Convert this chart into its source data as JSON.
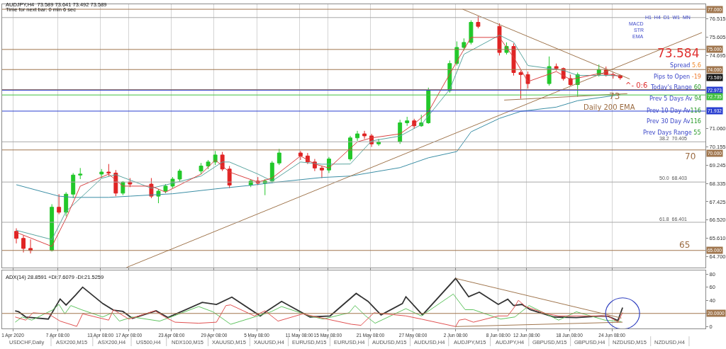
{
  "chart_data": [
    {
      "type": "candlestick",
      "title": "AUDJPY,H4  73.589 73.641 73.492 73.589",
      "subtitle": "Time for next bar: 0 min 6 sec",
      "x": [
        "2020-04-01T12:00",
        "2020-04-02T12:00",
        "2020-04-03T12:00",
        "2020-04-06T12:00",
        "2020-04-07T12:00",
        "2020-04-08T12:00",
        "2020-04-09T12:00",
        "2020-04-10T12:00",
        "2020-04-13T12:00",
        "2020-04-14T12:00",
        "2020-04-15T12:00",
        "2020-04-16T12:00",
        "2020-04-17T12:00",
        "2020-04-20T12:00",
        "2020-04-21T12:00",
        "2020-04-22T12:00",
        "2020-04-23T12:00",
        "2020-04-24T12:00",
        "2020-04-27T12:00",
        "2020-04-28T12:00",
        "2020-04-29T12:00",
        "2020-04-30T12:00",
        "2020-05-01T12:00",
        "2020-05-04T12:00",
        "2020-05-05T12:00",
        "2020-05-06T12:00",
        "2020-05-07T12:00",
        "2020-05-08T12:00",
        "2020-05-11T12:00",
        "2020-05-12T12:00",
        "2020-05-13T12:00",
        "2020-05-14T12:00",
        "2020-05-15T12:00",
        "2020-05-18T12:00",
        "2020-05-19T12:00",
        "2020-05-20T12:00",
        "2020-05-21T12:00",
        "2020-05-22T12:00",
        "2020-05-25T12:00",
        "2020-05-26T12:00",
        "2020-05-27T12:00",
        "2020-05-28T12:00",
        "2020-05-29T12:00",
        "2020-06-01T12:00",
        "2020-06-02T12:00",
        "2020-06-03T12:00",
        "2020-06-04T12:00",
        "2020-06-05T12:00",
        "2020-06-08T12:00",
        "2020-06-09T12:00",
        "2020-06-10T12:00",
        "2020-06-11T12:00",
        "2020-06-12T12:00",
        "2020-06-15T12:00",
        "2020-06-16T12:00",
        "2020-06-17T12:00",
        "2020-06-18T12:00",
        "2020-06-19T12:00",
        "2020-06-22T12:00",
        "2020-06-23T12:00",
        "2020-06-24T12:00",
        "2020-06-25T12:00"
      ],
      "ohlc": [
        [
          65.95,
          66.1,
          65.35,
          65.6
        ],
        [
          65.6,
          65.75,
          64.9,
          65.1
        ],
        [
          65.1,
          65.55,
          64.85,
          65.0
        ],
        [
          65.0,
          67.3,
          64.95,
          67.15
        ],
        [
          67.15,
          67.8,
          66.8,
          66.9
        ],
        [
          66.9,
          67.9,
          66.7,
          67.8
        ],
        [
          67.8,
          68.85,
          67.6,
          68.75
        ],
        [
          68.75,
          69.1,
          68.55,
          68.8
        ],
        [
          68.8,
          69.05,
          68.6,
          68.9
        ],
        [
          68.9,
          69.3,
          68.7,
          68.85
        ],
        [
          68.85,
          69.0,
          67.7,
          67.85
        ],
        [
          67.85,
          68.45,
          67.75,
          68.4
        ],
        [
          68.4,
          68.6,
          68.15,
          68.3
        ],
        [
          68.3,
          68.6,
          67.6,
          67.7
        ],
        [
          67.7,
          68.05,
          67.35,
          67.95
        ],
        [
          67.95,
          68.3,
          67.85,
          68.2
        ],
        [
          68.2,
          68.65,
          68.1,
          68.55
        ],
        [
          68.55,
          69.05,
          68.45,
          68.95
        ],
        [
          68.95,
          69.35,
          68.8,
          69.2
        ],
        [
          69.2,
          69.5,
          69.05,
          69.4
        ],
        [
          69.4,
          69.95,
          69.25,
          69.75
        ],
        [
          69.75,
          69.9,
          68.95,
          69.05
        ],
        [
          69.05,
          69.2,
          68.1,
          68.25
        ],
        [
          68.25,
          68.55,
          68.15,
          68.45
        ],
        [
          68.45,
          68.65,
          68.25,
          68.35
        ],
        [
          68.35,
          68.55,
          67.75,
          68.45
        ],
        [
          68.45,
          69.45,
          68.35,
          69.35
        ],
        [
          69.35,
          70.05,
          69.25,
          69.85
        ],
        [
          69.85,
          69.95,
          69.5,
          69.7
        ],
        [
          69.7,
          69.85,
          69.3,
          69.4
        ],
        [
          69.4,
          69.55,
          68.95,
          69.1
        ],
        [
          69.1,
          69.2,
          68.6,
          69.0
        ],
        [
          69.0,
          69.65,
          68.85,
          69.55
        ],
        [
          69.55,
          70.7,
          69.45,
          70.6
        ],
        [
          70.6,
          70.95,
          70.45,
          70.8
        ],
        [
          70.8,
          70.95,
          70.55,
          70.7
        ],
        [
          70.7,
          70.8,
          70.15,
          70.3
        ],
        [
          70.3,
          70.55,
          70.2,
          70.4
        ],
        [
          70.4,
          71.5,
          70.3,
          71.35
        ],
        [
          71.35,
          71.65,
          71.2,
          71.45
        ],
        [
          71.45,
          71.55,
          71.05,
          71.2
        ],
        [
          71.2,
          71.75,
          71.15,
          71.35
        ],
        [
          71.35,
          73.1,
          71.3,
          72.95
        ],
        [
          72.95,
          74.45,
          72.85,
          74.3
        ],
        [
          74.3,
          75.4,
          74.2,
          75.1
        ],
        [
          75.1,
          75.55,
          74.95,
          75.35
        ],
        [
          75.35,
          76.45,
          75.25,
          76.35
        ],
        [
          76.35,
          76.65,
          76.05,
          76.15
        ],
        [
          76.15,
          76.3,
          74.7,
          74.85
        ],
        [
          74.85,
          75.35,
          74.75,
          75.15
        ],
        [
          75.15,
          75.3,
          73.7,
          73.85
        ],
        [
          73.85,
          73.95,
          72.55,
          73.75
        ],
        [
          73.75,
          73.9,
          73.05,
          73.3
        ],
        [
          73.3,
          74.65,
          73.2,
          74.15
        ],
        [
          74.15,
          74.3,
          73.95,
          74.05
        ],
        [
          74.05,
          74.1,
          73.45,
          73.55
        ],
        [
          73.55,
          73.75,
          73.2,
          73.25
        ],
        [
          73.25,
          73.85,
          72.65,
          73.75
        ],
        [
          73.75,
          74.25,
          73.65,
          74.0
        ],
        [
          74.0,
          74.15,
          73.65,
          73.75
        ],
        [
          73.75,
          73.85,
          73.55,
          73.7
        ],
        [
          73.7,
          73.75,
          73.492,
          73.589
        ]
      ],
      "colors": [
        "#e02424",
        "#e02424",
        "#e02424",
        "#22c82a",
        "#e02424",
        "#22c82a",
        "#22c82a",
        "#22c82a",
        "#22c82a",
        "#e02424",
        "#e02424",
        "#22c82a",
        "#e02424",
        "#e02424",
        "#22c82a",
        "#22c82a",
        "#22c82a",
        "#22c82a",
        "#22c82a",
        "#22c82a",
        "#22c82a",
        "#e02424",
        "#e02424",
        "#22c82a",
        "#e02424",
        "#22c82a",
        "#22c82a",
        "#22c82a",
        "#e02424",
        "#e02424",
        "#e02424",
        "#e02424",
        "#22c82a",
        "#22c82a",
        "#22c82a",
        "#e02424",
        "#e02424",
        "#22c82a",
        "#22c82a",
        "#22c82a",
        "#e02424",
        "#22c82a",
        "#22c82a",
        "#22c82a",
        "#22c82a",
        "#22c82a",
        "#22c82a",
        "#e02424",
        "#e02424",
        "#22c82a",
        "#e02424",
        "#e02424",
        "#e02424",
        "#22c82a",
        "#e02424",
        "#e02424",
        "#e02424",
        "#22c82a",
        "#22c82a",
        "#e02424",
        "#e02424",
        "#e02424"
      ],
      "series": [
        {
          "type": "line",
          "color": "#3b8ea5",
          "x": [
            "2020-04-01T12:00",
            "2020-04-07T12:00",
            "2020-04-09T12:00",
            "2020-04-14T12:00",
            "2020-04-17T12:00",
            "2020-04-23T12:00",
            "2020-04-29T12:00",
            "2020-05-04T12:00",
            "2020-05-08T12:00",
            "2020-05-14T12:00",
            "2020-05-18T12:00",
            "2020-05-25T12:00",
            "2020-05-29T12:00",
            "2020-06-02T12:00",
            "2020-06-04T12:00",
            "2020-06-08T12:00",
            "2020-06-11T12:00",
            "2020-06-16T12:00",
            "2020-06-19T12:00",
            "2020-06-25T12:00"
          ],
          "values": [
            68.27,
            67.7,
            67.64,
            67.64,
            67.7,
            67.82,
            68.06,
            68.24,
            68.41,
            68.63,
            68.7,
            69.12,
            69.61,
            69.92,
            70.9,
            71.57,
            71.92,
            72.13,
            72.45,
            72.75
          ]
        },
        {
          "type": "line",
          "color": "#5aa5a0",
          "x": [
            "2020-04-01T12:00",
            "2020-04-06T12:00",
            "2020-04-08T12:00",
            "2020-04-13T12:00",
            "2020-04-15T12:00",
            "2020-04-20T12:00",
            "2020-04-23T12:00",
            "2020-04-27T12:00",
            "2020-04-30T12:00",
            "2020-05-01T12:00",
            "2020-05-05T12:00",
            "2020-05-07T12:00",
            "2020-05-11T12:00",
            "2020-05-14T12:00",
            "2020-05-18T12:00",
            "2020-05-21T12:00",
            "2020-05-25T12:00",
            "2020-05-28T12:00",
            "2020-06-01T12:00",
            "2020-06-03T12:00",
            "2020-06-08T12:00",
            "2020-06-10T12:00",
            "2020-06-12T12:00",
            "2020-06-17T12:00",
            "2020-06-19T12:00",
            "2020-06-24T12:00",
            "2020-06-25T12:00"
          ],
          "values": [
            66.0,
            65.54,
            66.94,
            68.59,
            68.77,
            68.1,
            68.34,
            68.7,
            69.4,
            69.4,
            68.8,
            68.45,
            69.4,
            69.29,
            69.3,
            70.45,
            70.69,
            71.26,
            73.01,
            74.76,
            75.71,
            75.36,
            74.2,
            73.96,
            73.71,
            73.71,
            73.67
          ]
        },
        {
          "type": "line",
          "color": "#d94040",
          "x": [
            "2020-04-01T12:00",
            "2020-04-06T12:00",
            "2020-04-08T12:00",
            "2020-04-10T12:00",
            "2020-04-14T12:00",
            "2020-04-16T12:00",
            "2020-04-20T12:00",
            "2020-04-22T12:00",
            "2020-04-27T12:00",
            "2020-04-29T12:00",
            "2020-05-01T12:00",
            "2020-05-05T12:00",
            "2020-05-07T12:00",
            "2020-05-11T12:00",
            "2020-05-13T12:00",
            "2020-05-15T12:00",
            "2020-05-19T12:00",
            "2020-05-21T12:00",
            "2020-05-25T12:00",
            "2020-05-27T12:00",
            "2020-05-29T12:00",
            "2020-06-02T12:00",
            "2020-06-04T12:00",
            "2020-06-08T12:00",
            "2020-06-10T12:00",
            "2020-06-12T12:00",
            "2020-06-16T12:00",
            "2020-06-18T12:00",
            "2020-06-22T12:00",
            "2020-06-24T12:00",
            "2020-06-25T12:00"
          ],
          "values": [
            65.9,
            65.2,
            66.6,
            68.2,
            68.8,
            68.2,
            68.2,
            67.9,
            68.8,
            69.5,
            68.9,
            68.4,
            68.6,
            69.7,
            69.3,
            69.1,
            70.4,
            70.6,
            70.8,
            71.3,
            71.9,
            74.4,
            75.6,
            75.6,
            74.6,
            73.4,
            73.9,
            73.5,
            73.8,
            73.75,
            73.65
          ]
        },
        {
          "type": "line",
          "color": "#a0764e",
          "x": [
            "2020-04-17T00:00",
            "2020-07-07T00:00"
          ],
          "values": [
            64.15,
            75.84
          ]
        },
        {
          "type": "line",
          "color": "#a0764e",
          "x": [
            "2020-06-03T08:00",
            "2020-06-26T20:00"
          ],
          "values": [
            77.0,
            73.53
          ]
        },
        {
          "type": "line",
          "color": "#a0764e",
          "x": [
            "2020-06-09T04:00",
            "2020-06-26T12:00"
          ],
          "values": [
            72.48,
            72.8
          ]
        }
      ],
      "xlim": [
        "2020-03-30T12:00",
        "2020-07-07T12:00"
      ],
      "ylim": [
        64.13,
        77.25
      ],
      "yticks": [
        76.515,
        75.605,
        74.695,
        {
          "value": 71.06,
          "label": "71.060"
        },
        70.155,
        69.245,
        68.335,
        67.425,
        {
          "value": 66.52,
          "label": "66.520"
        },
        {
          "value": 65.61,
          "label": "65.610"
        },
        {
          "value": 64.7,
          "label": "64.700"
        }
      ],
      "tick_labels": "y",
      "grid": "x",
      "ref_lines": [
        {
          "axis": "y",
          "value": 77.0,
          "label": "77.000",
          "color": "#a0764e"
        },
        {
          "axis": "y",
          "value": 76.587,
          "color": "#a8a8a8"
        },
        {
          "axis": "y",
          "value": 75.0,
          "label": "75.000",
          "color": "#a0764e"
        },
        {
          "axis": "y",
          "value": 74.0,
          "label": "74.000",
          "color": "#a0764e"
        },
        {
          "axis": "y",
          "value": 73.0,
          "color": "#a0764e"
        },
        {
          "axis": "y",
          "value": 72.973,
          "label": "72.973",
          "color": "#2a3fd0"
        },
        {
          "axis": "y",
          "value": 72.735,
          "label": "72.735",
          "color": "#40c040"
        },
        {
          "axis": "y",
          "value": 71.932,
          "label": "71.932",
          "color": "#2a3fd0"
        },
        {
          "axis": "y",
          "value": 70.405,
          "color": "#a8a8a8"
        },
        {
          "axis": "y",
          "value": 70.0,
          "label": "70.000",
          "color": "#a0764e"
        },
        {
          "axis": "y",
          "value": 68.403,
          "color": "#a8a8a8"
        },
        {
          "axis": "y",
          "value": 66.401,
          "color": "#a8a8a8"
        },
        {
          "axis": "y",
          "value": 65.0,
          "label": "65.000",
          "color": "#a0764e"
        }
      ],
      "annotations": [
        "73.584",
        "Spread 5.6",
        "Pips to Open -19",
        "Today's Range 60",
        "Prev 5 Days Av 94",
        "Prev 10 Day Av116",
        "Prev 30 Day Av116",
        "Prev Days Range 55",
        "Daily 200 EMA",
        "^- 0:6",
        {
          "text": "73",
          "y": 73.0
        },
        "70",
        "65",
        "38.2  70.405",
        "50.0  68.403",
        "61.8  66.401",
        {
          "text": "73.589",
          "y": 73.589
        },
        "H1  H4  D1  W1  MN",
        "MACD",
        "STR",
        "EMA"
      ]
    },
    {
      "type": "line",
      "title": "ADX(14) 28.8591 +DI:7.6079 -DI:21.5259",
      "series": [
        {
          "color": "#333333",
          "x": [
            "2020-04-01T08:00",
            "2020-04-01T20:00",
            "2020-04-02T20:00",
            "2020-04-06T00:00",
            "2020-04-07T16:00",
            "2020-04-08T12:00",
            "2020-04-09T20:00",
            "2020-04-10T20:00",
            "2020-04-13T16:00",
            "2020-04-15T04:00",
            "2020-04-16T12:00",
            "2020-04-17T20:00",
            "2020-04-21T04:00",
            "2020-04-22T20:00",
            "2020-04-24T00:00",
            "2020-04-27T16:00",
            "2020-04-29T16:00",
            "2020-05-01T20:00",
            "2020-05-05T20:00",
            "2020-05-06T20:00",
            "2020-05-08T20:00",
            "2020-05-12T20:00",
            "2020-05-15T16:00",
            "2020-05-19T08:00",
            "2020-05-21T00:00",
            "2020-05-22T20:00",
            "2020-05-25T20:00",
            "2020-05-26T08:00",
            "2020-05-28T16:00",
            "2020-06-02T08:00",
            "2020-06-04T04:00",
            "2020-06-05T16:00",
            "2020-06-08T08:00",
            "2020-06-09T16:00",
            "2020-06-10T12:00",
            "2020-06-11T16:00",
            "2020-06-12T20:00",
            "2020-06-16T04:00",
            "2020-06-19T08:00",
            "2020-06-22T20:00",
            "2020-06-23T20:00",
            "2020-06-25T04:00",
            "2020-06-25T20:00"
          ],
          "values": [
            24,
            22.5,
            14.6,
            11.4,
            42,
            32.7,
            48,
            60,
            35,
            25,
            23,
            12.4,
            24,
            13.7,
            19.4,
            36.8,
            33.7,
            44.8,
            16.2,
            24,
            38.4,
            14.6,
            16.2,
            50.5,
            38.4,
            17.8,
            35,
            45.4,
            17.8,
            73.3,
            45.4,
            52.4,
            33.7,
            41.6,
            32,
            33.7,
            25.7,
            14.6,
            13.7,
            16.2,
            15.6,
            9.2,
            28.9
          ]
        },
        {
          "color": "#5fc35f",
          "x": [
            "2020-04-01T08:00",
            "2020-04-02T08:00",
            "2020-04-03T16:00",
            "2020-04-06T16:00",
            "2020-04-07T12:00",
            "2020-04-08T08:00",
            "2020-04-09T04:00",
            "2020-04-10T16:00",
            "2020-04-13T16:00",
            "2020-04-15T00:00",
            "2020-04-16T00:00",
            "2020-04-17T20:00",
            "2020-04-21T16:00",
            "2020-04-23T16:00",
            "2020-04-27T04:00",
            "2020-04-29T04:00",
            "2020-05-01T16:00",
            "2020-05-05T00:00",
            "2020-05-07T08:00",
            "2020-05-08T20:00",
            "2020-05-12T20:00",
            "2020-05-14T16:00",
            "2020-05-18T08:00",
            "2020-05-19T04:00",
            "2020-05-20T16:00",
            "2020-05-22T00:00",
            "2020-05-26T08:00",
            "2020-05-28T12:00",
            "2020-06-02T00:00",
            "2020-06-03T16:00",
            "2020-06-04T20:00",
            "2020-06-08T16:00",
            "2020-06-10T16:00",
            "2020-06-12T16:00",
            "2020-06-16T20:00",
            "2020-06-19T08:00",
            "2020-06-23T08:00",
            "2020-06-25T16:00"
          ],
          "values": [
            6.7,
            14.6,
            9.8,
            25.7,
            33.7,
            19.4,
            32,
            25.7,
            14.6,
            21,
            8.3,
            14.6,
            8.3,
            16.2,
            30.5,
            22.5,
            3.5,
            14.6,
            22.5,
            30.5,
            16.2,
            11.4,
            21,
            32,
            16.2,
            5.1,
            27.3,
            16.2,
            49.5,
            25.7,
            25.7,
            11.4,
            14.6,
            32,
            9.8,
            22.5,
            9.8,
            7.6
          ]
        },
        {
          "color": "#e05050",
          "x": [
            "2020-04-01T08:00",
            "2020-04-02T20:00",
            "2020-04-03T20:00",
            "2020-04-06T00:00",
            "2020-04-07T16:00",
            "2020-04-10T00:00",
            "2020-04-10T20:00",
            "2020-04-14T12:00",
            "2020-04-15T04:00",
            "2020-04-17T08:00",
            "2020-04-21T00:00",
            "2020-04-22T16:00",
            "2020-04-23T20:00",
            "2020-04-27T04:00",
            "2020-04-29T16:00",
            "2020-05-01T00:00",
            "2020-05-01T16:00",
            "2020-05-05T00:00",
            "2020-05-06T12:00",
            "2020-05-08T08:00",
            "2020-05-11T20:00",
            "2020-05-13T20:00",
            "2020-05-18T16:00",
            "2020-05-20T00:00",
            "2020-05-21T20:00",
            "2020-05-26T08:00",
            "2020-05-28T12:00",
            "2020-06-02T08:00",
            "2020-06-02T20:00",
            "2020-06-03T16:00",
            "2020-06-04T20:00",
            "2020-06-08T08:00",
            "2020-06-09T16:00",
            "2020-06-10T16:00",
            "2020-06-11T04:00",
            "2020-06-12T04:00",
            "2020-06-15T04:00",
            "2020-06-16T20:00",
            "2020-06-19T08:00",
            "2020-06-23T20:00",
            "2020-06-25T04:00",
            "2020-06-25T20:00"
          ],
          "values": [
            14.6,
            9.8,
            21,
            19.4,
            8.3,
            0.3,
            19.4,
            9.8,
            25.7,
            11.4,
            24,
            13,
            6.7,
            5.1,
            6.7,
            32,
            33,
            16.2,
            24,
            8.3,
            19.4,
            14.6,
            3.5,
            1.9,
            21,
            16.2,
            11.4,
            0,
            9.8,
            11.4,
            6.7,
            16.2,
            16.2,
            30.5,
            40,
            30.5,
            19.4,
            16.2,
            16.2,
            16.2,
            6.7,
            21.5
          ]
        },
        {
          "color": "#a0764e",
          "x": [
            "2020-06-02T08:00",
            "2020-06-25T16:00"
          ],
          "values": [
            73.3,
            13
          ]
        },
        {
          "color": "#a0764e",
          "x": [
            "2020-06-02T08:00",
            "2020-06-25T20:00"
          ],
          "values": [
            0,
            6.7
          ]
        }
      ],
      "xlim": [
        "2020-03-30T12:00",
        "2020-07-07T12:00"
      ],
      "xticks": [
        {
          "value": "2020-04-01T00:00",
          "label": "1 Apr 2020"
        },
        {
          "value": "2020-04-07T08:00",
          "label": "7 Apr 08:00"
        },
        {
          "value": "2020-04-13T08:00",
          "label": "13 Apr 08:00"
        },
        {
          "value": "2020-04-17T08:00",
          "label": "17 Apr 08:00"
        },
        {
          "value": "2020-04-23T08:00",
          "label": "23 Apr 08:00"
        },
        {
          "value": "2020-04-29T08:00",
          "label": "29 Apr 08:00"
        },
        {
          "value": "2020-05-05T08:00",
          "label": "5 May 08:00"
        },
        {
          "value": "2020-05-11T08:00",
          "label": "11 May 08:00"
        },
        {
          "value": "2020-05-15T08:00",
          "label": "15 May 08:00"
        },
        {
          "value": "2020-05-21T08:00",
          "label": "21 May 08:00"
        },
        {
          "value": "2020-05-27T08:00",
          "label": "27 May 08:00"
        },
        {
          "value": "2020-06-02T08:00",
          "label": "2 Jun 08:00"
        },
        {
          "value": "2020-06-08T08:00",
          "label": "8 Jun 08:00"
        },
        {
          "value": "2020-06-12T08:00",
          "label": "12 Jun 08:00"
        },
        {
          "value": "2020-06-18T08:00",
          "label": "18 Jun 08:00"
        },
        {
          "value": "2020-06-24T08:00",
          "label": "24 Jun 08:00"
        }
      ],
      "ylim": [
        -3,
        85
      ],
      "yticks": [
        0,
        {
          "value": 20,
          "label": null
        },
        40,
        60,
        80
      ],
      "grid": "x",
      "ref_lines": [
        {
          "axis": "y",
          "value": 20,
          "label": "20.0000",
          "color": "#a0764e"
        }
      ],
      "annotations": [
        "USDCHF,Daily",
        "ASX200,M15",
        "ASX200,H4",
        "US500,H4",
        "NDX100,M15",
        "XAUUSD,M15",
        "XAUUSD,H4",
        "EURUSD,M15",
        "EURUSD,H4",
        "AUDUSD,M15",
        "AUDUSD,H4",
        "AUDJPY,M15",
        "AUDJPY,H4",
        "GBPUSD,M15",
        "GBPUSD,H4",
        "NZDUSD,M15",
        "NZDUSD,H4"
      ]
    }
  ]
}
